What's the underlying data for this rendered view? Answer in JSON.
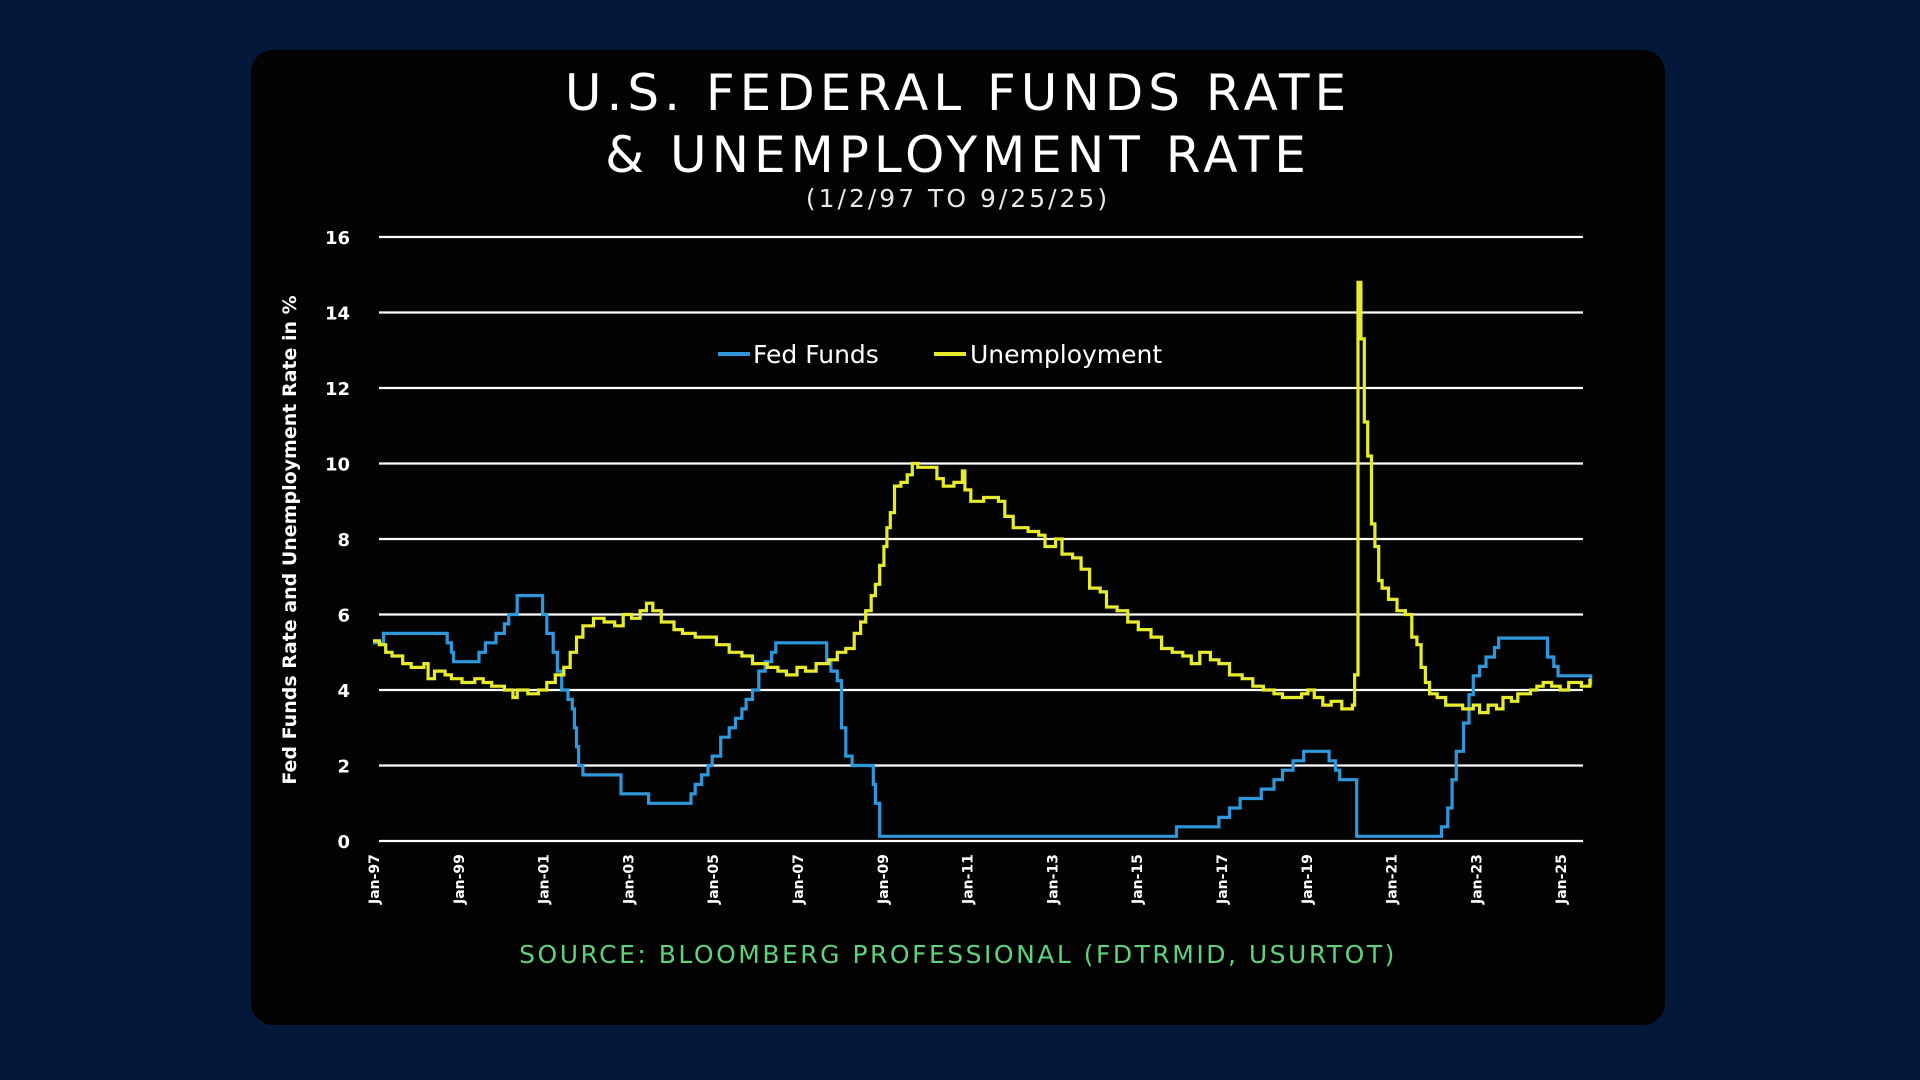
{
  "colors": {
    "background": "#04183a",
    "card": "#030303",
    "fed_funds": "#2f98dc",
    "unemployment": "#e6ec2c",
    "source": "#5fd27c",
    "text": "#ffffff",
    "grid": "#ffffff"
  },
  "header": {
    "title_line1": "U.S. FEDERAL FUNDS RATE",
    "title_line2": "& UNEMPLOYMENT RATE",
    "subtitle": "(1/2/97 TO 9/25/25)"
  },
  "footer": {
    "source": "SOURCE: BLOOMBERG PROFESSIONAL (FDTRMID, USURTOT)"
  },
  "chart_data": {
    "type": "line",
    "title": "U.S. FEDERAL FUNDS RATE & UNEMPLOYMENT RATE",
    "subtitle": "(1/2/97 TO 9/25/25)",
    "xlabel": "",
    "ylabel": "Fed Funds Rate and Unemployment Rate in %",
    "xlim": [
      1997.0,
      2025.75
    ],
    "ylim": [
      0,
      16
    ],
    "yticks": [
      0,
      2,
      4,
      6,
      8,
      10,
      12,
      14,
      16
    ],
    "grid": true,
    "legend_position": "top-center",
    "xtick_labels": [
      {
        "label": "Jan-97",
        "x": 1997
      },
      {
        "label": "Jan-99",
        "x": 1999
      },
      {
        "label": "Jan-01",
        "x": 2001
      },
      {
        "label": "Jan-03",
        "x": 2003
      },
      {
        "label": "Jan-05",
        "x": 2005
      },
      {
        "label": "Jan-07",
        "x": 2007
      },
      {
        "label": "Jan-09",
        "x": 2009
      },
      {
        "label": "Jan-11",
        "x": 2011
      },
      {
        "label": "Jan-13",
        "x": 2013
      },
      {
        "label": "Jan-15",
        "x": 2015
      },
      {
        "label": "Jan-17",
        "x": 2017
      },
      {
        "label": "Jan-19",
        "x": 2019
      },
      {
        "label": "Jan-21",
        "x": 2021
      },
      {
        "label": "Jan-23",
        "x": 2023
      },
      {
        "label": "Jan-25",
        "x": 2025
      }
    ],
    "series": [
      {
        "name": "Fed Funds",
        "key": "fed_funds",
        "step": true,
        "points": [
          [
            1997.0,
            5.25
          ],
          [
            1997.25,
            5.5
          ],
          [
            1998.75,
            5.25
          ],
          [
            1998.85,
            5.0
          ],
          [
            1998.9,
            4.75
          ],
          [
            1999.5,
            5.0
          ],
          [
            1999.65,
            5.25
          ],
          [
            1999.9,
            5.5
          ],
          [
            2000.1,
            5.75
          ],
          [
            2000.2,
            6.0
          ],
          [
            2000.4,
            6.5
          ],
          [
            2001.0,
            6.0
          ],
          [
            2001.1,
            5.5
          ],
          [
            2001.25,
            5.0
          ],
          [
            2001.35,
            4.5
          ],
          [
            2001.45,
            4.0
          ],
          [
            2001.6,
            3.75
          ],
          [
            2001.7,
            3.5
          ],
          [
            2001.75,
            3.0
          ],
          [
            2001.8,
            2.5
          ],
          [
            2001.85,
            2.0
          ],
          [
            2001.95,
            1.75
          ],
          [
            2002.85,
            1.25
          ],
          [
            2003.5,
            1.0
          ],
          [
            2004.5,
            1.25
          ],
          [
            2004.6,
            1.5
          ],
          [
            2004.75,
            1.75
          ],
          [
            2004.9,
            2.0
          ],
          [
            2005.0,
            2.25
          ],
          [
            2005.2,
            2.75
          ],
          [
            2005.4,
            3.0
          ],
          [
            2005.55,
            3.25
          ],
          [
            2005.7,
            3.5
          ],
          [
            2005.8,
            3.75
          ],
          [
            2005.95,
            4.0
          ],
          [
            2006.1,
            4.5
          ],
          [
            2006.25,
            4.75
          ],
          [
            2006.4,
            5.0
          ],
          [
            2006.5,
            5.25
          ],
          [
            2007.7,
            4.75
          ],
          [
            2007.8,
            4.5
          ],
          [
            2007.95,
            4.25
          ],
          [
            2008.05,
            3.0
          ],
          [
            2008.15,
            2.25
          ],
          [
            2008.3,
            2.0
          ],
          [
            2008.8,
            1.5
          ],
          [
            2008.85,
            1.0
          ],
          [
            2008.95,
            0.125
          ],
          [
            2015.95,
            0.375
          ],
          [
            2016.95,
            0.625
          ],
          [
            2017.2,
            0.875
          ],
          [
            2017.45,
            1.125
          ],
          [
            2017.95,
            1.375
          ],
          [
            2018.25,
            1.625
          ],
          [
            2018.45,
            1.875
          ],
          [
            2018.7,
            2.125
          ],
          [
            2018.95,
            2.375
          ],
          [
            2019.55,
            2.125
          ],
          [
            2019.7,
            1.875
          ],
          [
            2019.8,
            1.625
          ],
          [
            2020.2,
            0.125
          ],
          [
            2022.2,
            0.375
          ],
          [
            2022.35,
            0.875
          ],
          [
            2022.45,
            1.625
          ],
          [
            2022.55,
            2.375
          ],
          [
            2022.72,
            3.125
          ],
          [
            2022.85,
            3.875
          ],
          [
            2022.95,
            4.375
          ],
          [
            2023.1,
            4.625
          ],
          [
            2023.25,
            4.875
          ],
          [
            2023.45,
            5.125
          ],
          [
            2023.55,
            5.375
          ],
          [
            2024.7,
            4.875
          ],
          [
            2024.85,
            4.625
          ],
          [
            2024.95,
            4.375
          ],
          [
            2025.72,
            4.125
          ]
        ]
      },
      {
        "name": "Unemployment",
        "key": "unemployment",
        "step": true,
        "points": [
          [
            1997.0,
            5.3
          ],
          [
            1997.15,
            5.2
          ],
          [
            1997.3,
            5.0
          ],
          [
            1997.45,
            4.9
          ],
          [
            1997.7,
            4.7
          ],
          [
            1997.9,
            4.6
          ],
          [
            1998.2,
            4.7
          ],
          [
            1998.3,
            4.3
          ],
          [
            1998.45,
            4.5
          ],
          [
            1998.7,
            4.4
          ],
          [
            1998.85,
            4.3
          ],
          [
            1999.1,
            4.2
          ],
          [
            1999.4,
            4.3
          ],
          [
            1999.6,
            4.2
          ],
          [
            1999.8,
            4.1
          ],
          [
            2000.1,
            4.0
          ],
          [
            2000.3,
            3.8
          ],
          [
            2000.4,
            4.0
          ],
          [
            2000.65,
            3.9
          ],
          [
            2000.9,
            4.0
          ],
          [
            2001.1,
            4.2
          ],
          [
            2001.3,
            4.4
          ],
          [
            2001.5,
            4.6
          ],
          [
            2001.65,
            5.0
          ],
          [
            2001.8,
            5.4
          ],
          [
            2001.95,
            5.7
          ],
          [
            2002.2,
            5.9
          ],
          [
            2002.45,
            5.8
          ],
          [
            2002.7,
            5.7
          ],
          [
            2002.9,
            6.0
          ],
          [
            2003.1,
            5.9
          ],
          [
            2003.3,
            6.1
          ],
          [
            2003.45,
            6.3
          ],
          [
            2003.6,
            6.1
          ],
          [
            2003.8,
            5.8
          ],
          [
            2004.1,
            5.6
          ],
          [
            2004.3,
            5.5
          ],
          [
            2004.6,
            5.4
          ],
          [
            2004.85,
            5.4
          ],
          [
            2005.1,
            5.2
          ],
          [
            2005.4,
            5.0
          ],
          [
            2005.7,
            4.9
          ],
          [
            2005.95,
            4.7
          ],
          [
            2006.3,
            4.6
          ],
          [
            2006.55,
            4.5
          ],
          [
            2006.75,
            4.4
          ],
          [
            2007.0,
            4.6
          ],
          [
            2007.2,
            4.5
          ],
          [
            2007.45,
            4.7
          ],
          [
            2007.75,
            4.8
          ],
          [
            2007.95,
            5.0
          ],
          [
            2008.15,
            5.1
          ],
          [
            2008.35,
            5.5
          ],
          [
            2008.5,
            5.8
          ],
          [
            2008.62,
            6.1
          ],
          [
            2008.75,
            6.5
          ],
          [
            2008.85,
            6.8
          ],
          [
            2008.95,
            7.3
          ],
          [
            2009.05,
            7.8
          ],
          [
            2009.12,
            8.3
          ],
          [
            2009.2,
            8.7
          ],
          [
            2009.3,
            9.4
          ],
          [
            2009.45,
            9.5
          ],
          [
            2009.6,
            9.7
          ],
          [
            2009.72,
            10.0
          ],
          [
            2009.85,
            9.9
          ],
          [
            2010.3,
            9.6
          ],
          [
            2010.45,
            9.4
          ],
          [
            2010.7,
            9.5
          ],
          [
            2010.9,
            9.8
          ],
          [
            2010.96,
            9.3
          ],
          [
            2011.1,
            9.0
          ],
          [
            2011.4,
            9.1
          ],
          [
            2011.75,
            9.0
          ],
          [
            2011.9,
            8.6
          ],
          [
            2012.1,
            8.3
          ],
          [
            2012.45,
            8.2
          ],
          [
            2012.7,
            8.1
          ],
          [
            2012.85,
            7.8
          ],
          [
            2013.1,
            8.0
          ],
          [
            2013.25,
            7.6
          ],
          [
            2013.5,
            7.5
          ],
          [
            2013.7,
            7.2
          ],
          [
            2013.9,
            6.7
          ],
          [
            2014.15,
            6.6
          ],
          [
            2014.3,
            6.2
          ],
          [
            2014.55,
            6.1
          ],
          [
            2014.8,
            5.8
          ],
          [
            2015.05,
            5.6
          ],
          [
            2015.35,
            5.4
          ],
          [
            2015.6,
            5.1
          ],
          [
            2015.85,
            5.0
          ],
          [
            2016.1,
            4.9
          ],
          [
            2016.3,
            4.7
          ],
          [
            2016.5,
            5.0
          ],
          [
            2016.75,
            4.8
          ],
          [
            2016.95,
            4.7
          ],
          [
            2017.2,
            4.4
          ],
          [
            2017.5,
            4.3
          ],
          [
            2017.75,
            4.1
          ],
          [
            2018.0,
            4.0
          ],
          [
            2018.25,
            3.9
          ],
          [
            2018.45,
            3.8
          ],
          [
            2018.7,
            3.8
          ],
          [
            2018.9,
            3.9
          ],
          [
            2019.05,
            4.0
          ],
          [
            2019.2,
            3.8
          ],
          [
            2019.4,
            3.6
          ],
          [
            2019.6,
            3.7
          ],
          [
            2019.85,
            3.5
          ],
          [
            2020.1,
            3.6
          ],
          [
            2020.15,
            4.4
          ],
          [
            2020.23,
            14.8
          ],
          [
            2020.3,
            13.3
          ],
          [
            2020.38,
            11.1
          ],
          [
            2020.46,
            10.2
          ],
          [
            2020.55,
            8.4
          ],
          [
            2020.63,
            7.8
          ],
          [
            2020.72,
            6.9
          ],
          [
            2020.8,
            6.7
          ],
          [
            2020.95,
            6.4
          ],
          [
            2021.15,
            6.1
          ],
          [
            2021.35,
            6.0
          ],
          [
            2021.5,
            5.4
          ],
          [
            2021.62,
            5.2
          ],
          [
            2021.72,
            4.6
          ],
          [
            2021.82,
            4.2
          ],
          [
            2021.92,
            3.9
          ],
          [
            2022.1,
            3.8
          ],
          [
            2022.3,
            3.6
          ],
          [
            2022.7,
            3.5
          ],
          [
            2022.95,
            3.6
          ],
          [
            2023.1,
            3.4
          ],
          [
            2023.3,
            3.6
          ],
          [
            2023.5,
            3.5
          ],
          [
            2023.65,
            3.8
          ],
          [
            2023.85,
            3.7
          ],
          [
            2024.0,
            3.9
          ],
          [
            2024.3,
            4.0
          ],
          [
            2024.45,
            4.1
          ],
          [
            2024.6,
            4.2
          ],
          [
            2024.8,
            4.1
          ],
          [
            2025.0,
            4.0
          ],
          [
            2025.2,
            4.2
          ],
          [
            2025.5,
            4.1
          ],
          [
            2025.7,
            4.3
          ]
        ]
      }
    ]
  }
}
